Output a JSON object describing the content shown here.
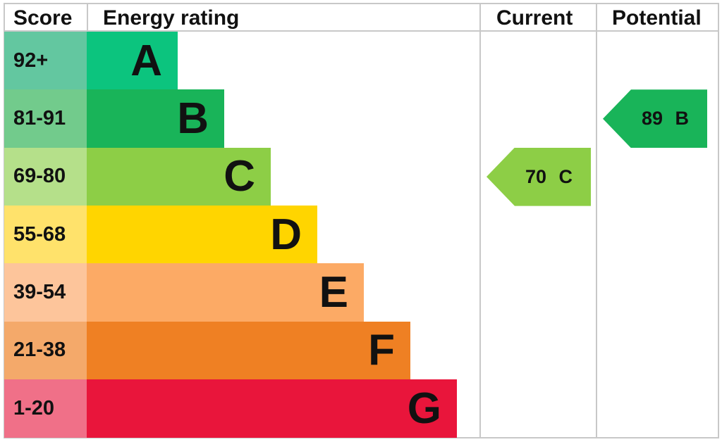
{
  "chart_data": {
    "type": "bar",
    "headers": {
      "score": "Score",
      "rating": "Energy rating",
      "current": "Current",
      "potential": "Potential"
    },
    "bands": [
      {
        "score": "92+",
        "letter": "A",
        "color": "#0cc47e",
        "score_color": "#63c7a0"
      },
      {
        "score": "81-91",
        "letter": "B",
        "color": "#19b459",
        "score_color": "#72cb8c"
      },
      {
        "score": "69-80",
        "letter": "C",
        "color": "#8dce46",
        "score_color": "#b5e08a"
      },
      {
        "score": "55-68",
        "letter": "D",
        "color": "#ffd500",
        "score_color": "#ffe26b"
      },
      {
        "score": "39-54",
        "letter": "E",
        "color": "#fcaa65",
        "score_color": "#fdc59b"
      },
      {
        "score": "21-38",
        "letter": "F",
        "color": "#ef8023",
        "score_color": "#f4a96a"
      },
      {
        "score": "1-20",
        "letter": "G",
        "color": "#e9153b",
        "score_color": "#f07088"
      }
    ],
    "current": {
      "value": 70,
      "letter": "C",
      "label": "70 C"
    },
    "potential": {
      "value": 89,
      "letter": "B",
      "label": "89 B"
    }
  }
}
